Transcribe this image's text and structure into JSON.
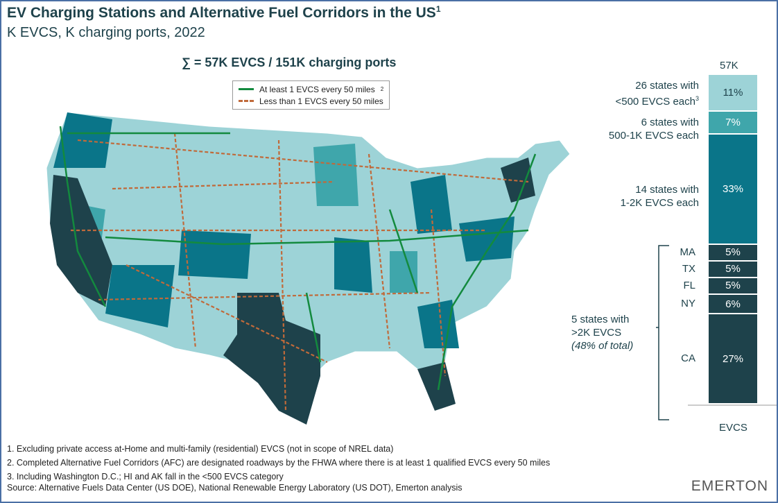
{
  "header": {
    "title": "EV Charging Stations and Alternative Fuel Corridors in the US",
    "title_sup": "1",
    "subtitle": "K EVCS, K charging ports, 2022",
    "sum": "∑ = 57K EVCS / 151K charging ports"
  },
  "legend": {
    "items": [
      {
        "label": "At least 1 EVCS every 50 miles",
        "sup": "2",
        "color": "#138a3e",
        "style": "solid"
      },
      {
        "label": "Less than 1 EVCS every 50 miles",
        "color": "#c06a3a",
        "style": "dashed"
      }
    ]
  },
  "chart_data": {
    "type": "bar",
    "stacked": true,
    "category": "EVCS",
    "total_label": "57K",
    "segments": [
      {
        "name": "<500 EVCS",
        "value": 11,
        "label": "11%",
        "color": "#9dd3d7"
      },
      {
        "name": "500-1K EVCS",
        "value": 7,
        "label": "7%",
        "color": "#3fa6ab"
      },
      {
        "name": "1-2K EVCS",
        "value": 33,
        "label": "33%",
        "color": "#0a7589"
      },
      {
        "name": "MA",
        "value": 5,
        "label": "5%",
        "color": "#1e424b"
      },
      {
        "name": "TX",
        "value": 5,
        "label": "5%",
        "color": "#1e424b"
      },
      {
        "name": "FL",
        "value": 5,
        "label": "5%",
        "color": "#1e424b"
      },
      {
        "name": "NY",
        "value": 6,
        "label": "6%",
        "color": "#1e424b"
      },
      {
        "name": "CA",
        "value": 27,
        "label": "27%",
        "color": "#1e424b"
      }
    ],
    "group_labels": [
      {
        "line1": "26 states with",
        "line2": "<500 EVCS each",
        "sup": "3"
      },
      {
        "line1": "6 states with",
        "line2": "500-1K EVCS each"
      },
      {
        "line1": "14 states with",
        "line2": "1-2K EVCS each"
      },
      {
        "line1": "5 states with",
        "line2": ">2K EVCS",
        "line3": "(48% of total)"
      }
    ]
  },
  "footnotes": [
    "1.  Excluding private access at-Home and multi-family (residential) EVCS (not in scope of NREL data)",
    "2.  Completed Alternative Fuel Corridors (AFC) are designated roadways by the FHWA where there is at least 1 qualified EVCS every 50 miles",
    "3.  Including Washington D.C.; HI and AK fall in the <500 EVCS category",
    "Source: Alternative Fuels Data Center (US DOE), National Renewable Energy Laboratory (US DOT), Emerton analysis"
  ],
  "brand": "EMERTON"
}
